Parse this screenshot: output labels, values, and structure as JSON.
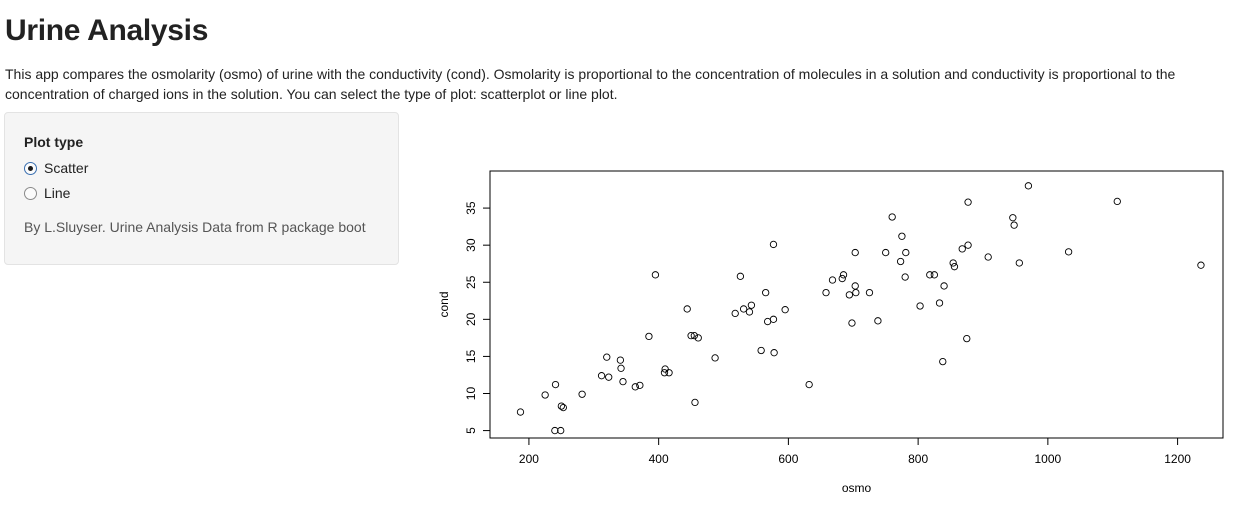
{
  "header": {
    "title": "Urine Analysis",
    "description": "This app compares the osmolarity (osmo) of urine with the conductivity (cond). Osmolarity is proportional to the concentration of molecules in a solution and conductivity is proportional to the concentration of charged ions in the solution. You can select the type of plot: scatterplot or line plot."
  },
  "sidebar": {
    "label": "Plot type",
    "options": [
      {
        "label": "Scatter",
        "checked": true
      },
      {
        "label": "Line",
        "checked": false
      }
    ],
    "credit": "By L.Sluyser. Urine Analysis Data from R package boot"
  },
  "chart_data": {
    "type": "scatter",
    "title": "",
    "xlabel": "osmo",
    "ylabel": "cond",
    "xlim": [
      140,
      1270
    ],
    "ylim": [
      4,
      40
    ],
    "xticks": [
      200,
      400,
      600,
      800,
      1000,
      1200
    ],
    "yticks": [
      5,
      10,
      15,
      20,
      25,
      30,
      35
    ],
    "grid": false,
    "points": [
      [
        187,
        7.5
      ],
      [
        225,
        9.8
      ],
      [
        241,
        11.2
      ],
      [
        250,
        8.3
      ],
      [
        253,
        8.1
      ],
      [
        240,
        5
      ],
      [
        249,
        5
      ],
      [
        282,
        9.9
      ],
      [
        312,
        12.4
      ],
      [
        323,
        12.2
      ],
      [
        320,
        14.9
      ],
      [
        341,
        14.5
      ],
      [
        342,
        13.4
      ],
      [
        345,
        11.6
      ],
      [
        364,
        10.9
      ],
      [
        371,
        11.1
      ],
      [
        385,
        17.7
      ],
      [
        395,
        26
      ],
      [
        409,
        12.8
      ],
      [
        410,
        13.3
      ],
      [
        416,
        12.8
      ],
      [
        444,
        21.4
      ],
      [
        450,
        17.8
      ],
      [
        455,
        17.8
      ],
      [
        461,
        17.5
      ],
      [
        456,
        8.8
      ],
      [
        487,
        14.8
      ],
      [
        518,
        20.8
      ],
      [
        526,
        25.8
      ],
      [
        531,
        21.4
      ],
      [
        540,
        21
      ],
      [
        543,
        21.9
      ],
      [
        558,
        15.8
      ],
      [
        565,
        23.6
      ],
      [
        568,
        19.7
      ],
      [
        577,
        20
      ],
      [
        577,
        30.1
      ],
      [
        578,
        15.5
      ],
      [
        595,
        21.3
      ],
      [
        632,
        11.2
      ],
      [
        658,
        23.6
      ],
      [
        668,
        25.3
      ],
      [
        683,
        25.5
      ],
      [
        685,
        26
      ],
      [
        694,
        23.3
      ],
      [
        698,
        19.5
      ],
      [
        703,
        29
      ],
      [
        703,
        24.5
      ],
      [
        704,
        23.6
      ],
      [
        725,
        23.6
      ],
      [
        738,
        19.8
      ],
      [
        750,
        29
      ],
      [
        760,
        33.8
      ],
      [
        773,
        27.8
      ],
      [
        775,
        31.2
      ],
      [
        780,
        25.7
      ],
      [
        781,
        29
      ],
      [
        803,
        21.8
      ],
      [
        818,
        26
      ],
      [
        825,
        26
      ],
      [
        833,
        22.2
      ],
      [
        838,
        14.3
      ],
      [
        840,
        24.5
      ],
      [
        854,
        27.6
      ],
      [
        856,
        27.1
      ],
      [
        868,
        29.5
      ],
      [
        875,
        17.4
      ],
      [
        877,
        30
      ],
      [
        877,
        35.8
      ],
      [
        908,
        28.4
      ],
      [
        946,
        33.7
      ],
      [
        948,
        32.7
      ],
      [
        956,
        27.6
      ],
      [
        970,
        38
      ],
      [
        1032,
        29.1
      ],
      [
        1107,
        35.9
      ],
      [
        1236,
        27.3
      ]
    ]
  }
}
